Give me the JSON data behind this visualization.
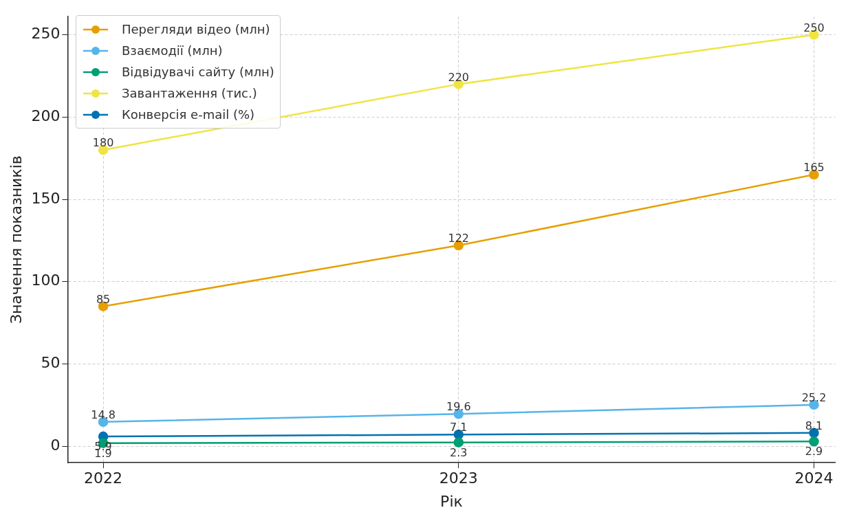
{
  "chart_data": {
    "type": "line",
    "xlabel": "Рік",
    "ylabel": "Значення показників",
    "x": [
      2022,
      2023,
      2024
    ],
    "xlim": [
      2021.9,
      2024.06
    ],
    "xticks": [
      2022,
      2023,
      2024
    ],
    "ylim": [
      -10,
      261
    ],
    "yticks": [
      0,
      50,
      100,
      150,
      200,
      250
    ],
    "series": [
      {
        "name": "Перегляди відео (млн)",
        "color": "#e69f00",
        "values": [
          85,
          122,
          165
        ]
      },
      {
        "name": "Взаємодії (млн)",
        "color": "#56b4e9",
        "values": [
          14.8,
          19.6,
          25.2
        ]
      },
      {
        "name": "Відвідувачі сайту (млн)",
        "color": "#009e73",
        "values": [
          1.9,
          2.3,
          2.9
        ]
      },
      {
        "name": "Завантаження (тис.)",
        "color": "#f0e442",
        "values": [
          180,
          220,
          250
        ]
      },
      {
        "name": "Конверсія e-mail (%)",
        "color": "#0072b2",
        "values": [
          5.9,
          7.1,
          8.1
        ]
      }
    ],
    "data_labels": true,
    "grid": true,
    "legend": "top left",
    "marker": "circle",
    "line_style": "solid"
  }
}
